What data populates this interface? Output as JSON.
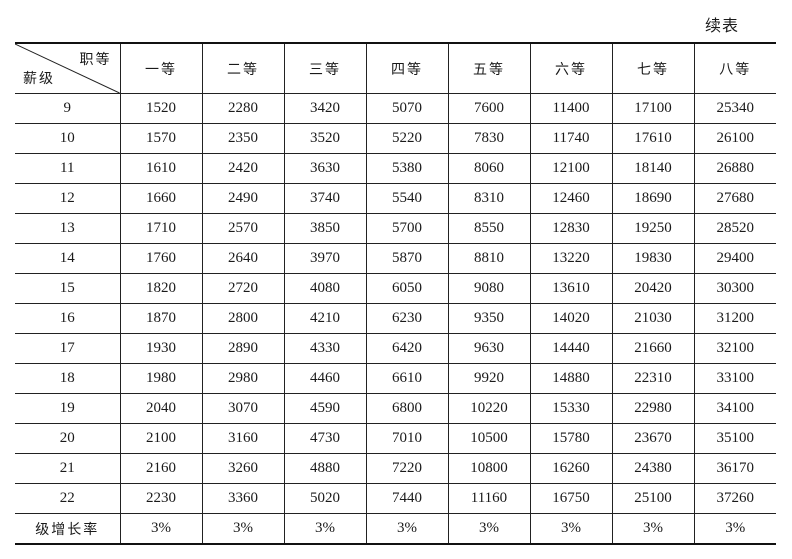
{
  "caption": "续表",
  "header": {
    "corner_top": "职等",
    "corner_bottom": "薪级",
    "columns": [
      "一等",
      "二等",
      "三等",
      "四等",
      "五等",
      "六等",
      "七等",
      "八等"
    ]
  },
  "rows": [
    {
      "level": "9",
      "values": [
        "1520",
        "2280",
        "3420",
        "5070",
        "7600",
        "11400",
        "17100",
        "25340"
      ]
    },
    {
      "level": "10",
      "values": [
        "1570",
        "2350",
        "3520",
        "5220",
        "7830",
        "11740",
        "17610",
        "26100"
      ]
    },
    {
      "level": "11",
      "values": [
        "1610",
        "2420",
        "3630",
        "5380",
        "8060",
        "12100",
        "18140",
        "26880"
      ]
    },
    {
      "level": "12",
      "values": [
        "1660",
        "2490",
        "3740",
        "5540",
        "8310",
        "12460",
        "18690",
        "27680"
      ]
    },
    {
      "level": "13",
      "values": [
        "1710",
        "2570",
        "3850",
        "5700",
        "8550",
        "12830",
        "19250",
        "28520"
      ]
    },
    {
      "level": "14",
      "values": [
        "1760",
        "2640",
        "3970",
        "5870",
        "8810",
        "13220",
        "19830",
        "29400"
      ]
    },
    {
      "level": "15",
      "values": [
        "1820",
        "2720",
        "4080",
        "6050",
        "9080",
        "13610",
        "20420",
        "30300"
      ]
    },
    {
      "level": "16",
      "values": [
        "1870",
        "2800",
        "4210",
        "6230",
        "9350",
        "14020",
        "21030",
        "31200"
      ]
    },
    {
      "level": "17",
      "values": [
        "1930",
        "2890",
        "4330",
        "6420",
        "9630",
        "14440",
        "21660",
        "32100"
      ]
    },
    {
      "level": "18",
      "values": [
        "1980",
        "2980",
        "4460",
        "6610",
        "9920",
        "14880",
        "22310",
        "33100"
      ]
    },
    {
      "level": "19",
      "values": [
        "2040",
        "3070",
        "4590",
        "6800",
        "10220",
        "15330",
        "22980",
        "34100"
      ]
    },
    {
      "level": "20",
      "values": [
        "2100",
        "3160",
        "4730",
        "7010",
        "10500",
        "15780",
        "23670",
        "35100"
      ]
    },
    {
      "level": "21",
      "values": [
        "2160",
        "3260",
        "4880",
        "7220",
        "10800",
        "16260",
        "24380",
        "36170"
      ]
    },
    {
      "level": "22",
      "values": [
        "2230",
        "3360",
        "5020",
        "7440",
        "11160",
        "16750",
        "25100",
        "37260"
      ]
    }
  ],
  "footer": {
    "label": "级增长率",
    "values": [
      "3%",
      "3%",
      "3%",
      "3%",
      "3%",
      "3%",
      "3%",
      "3%"
    ]
  }
}
